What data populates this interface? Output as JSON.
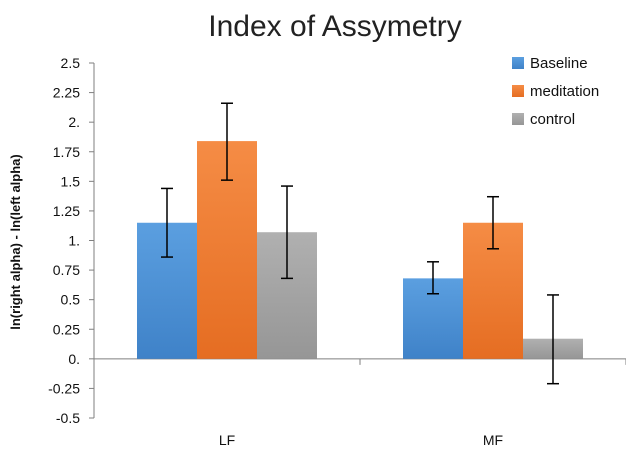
{
  "chart_data": {
    "type": "bar",
    "title": "Index of Assymetry",
    "xlabel": "",
    "ylabel": "ln(right alpha) - ln(left alpha)",
    "ylim": [
      -0.5,
      2.5
    ],
    "yticks": [
      2.5,
      2.25,
      2,
      1.75,
      1.5,
      1.25,
      1,
      0.75,
      0.5,
      0.25,
      0,
      -0.25,
      -0.5
    ],
    "ytick_labels": [
      "2.5",
      "2.25",
      "2.",
      "1.75",
      "1.5",
      "1.25",
      "1.",
      "0.75",
      "0.5",
      "0.25",
      "0.",
      "-0.25",
      "-0.5"
    ],
    "categories": [
      "LF",
      "MF"
    ],
    "series": [
      {
        "name": "Baseline",
        "color": "#4a8fd4",
        "values": [
          1.15,
          0.68
        ],
        "err_low": [
          0.86,
          0.55
        ],
        "err_high": [
          1.44,
          0.82
        ]
      },
      {
        "name": "meditation",
        "color": "#f07c32",
        "values": [
          1.84,
          1.15
        ],
        "err_low": [
          1.51,
          0.93
        ],
        "err_high": [
          2.16,
          1.37
        ]
      },
      {
        "name": "control",
        "color": "#a3a3a3",
        "values": [
          1.07,
          0.17
        ],
        "err_low": [
          0.68,
          -0.21
        ],
        "err_high": [
          1.46,
          0.54
        ]
      }
    ],
    "legend_position": "top-right",
    "grid": false
  }
}
